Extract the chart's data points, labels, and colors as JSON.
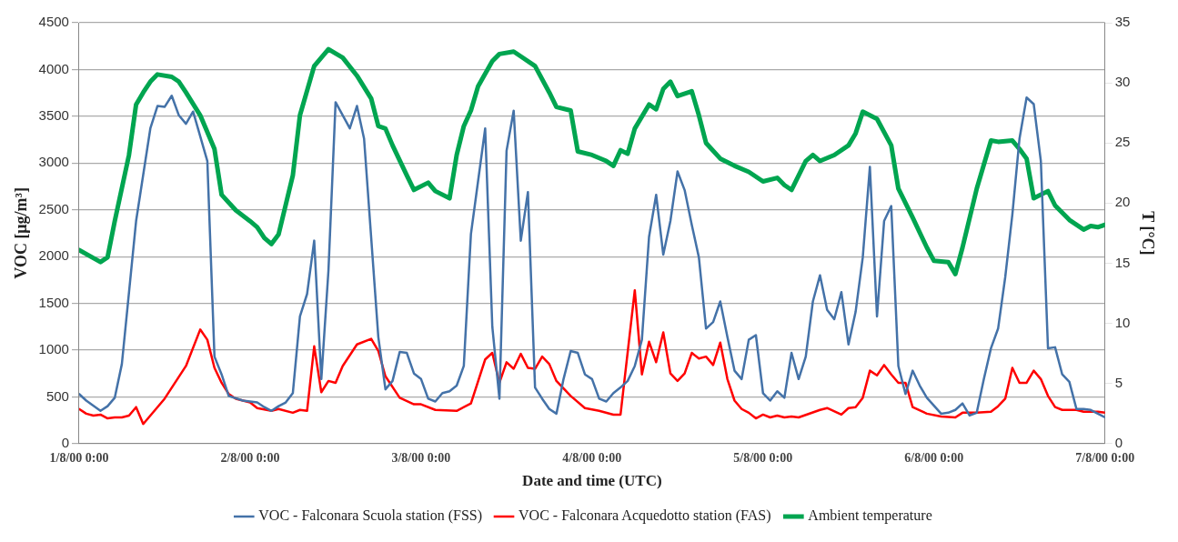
{
  "chart_data": {
    "type": "line",
    "xlabel": "Date and time (UTC)",
    "ylabel": "VOC [μg/m³]",
    "y2label": "T [°C]",
    "xlim": [
      "2000-08-01T00:00",
      "2000-08-07T00:00"
    ],
    "xticks": [
      {
        "value": "2000-08-01T00:00",
        "label": "1/8/00 0:00"
      },
      {
        "value": "2000-08-02T00:00",
        "label": "2/8/00 0:00"
      },
      {
        "value": "2000-08-03T00:00",
        "label": "3/8/00 0:00"
      },
      {
        "value": "2000-08-04T00:00",
        "label": "4/8/00 0:00"
      },
      {
        "value": "2000-08-05T00:00",
        "label": "5/8/00 0:00"
      },
      {
        "value": "2000-08-06T00:00",
        "label": "6/8/00 0:00"
      },
      {
        "value": "2000-08-07T00:00",
        "label": "7/8/00 0:00"
      }
    ],
    "ylim": [
      0,
      4500
    ],
    "yticks": [
      0,
      500,
      1000,
      1500,
      2000,
      2500,
      3000,
      3500,
      4000,
      4500
    ],
    "y2lim": [
      0,
      35
    ],
    "y2ticks": [
      0,
      5,
      10,
      15,
      20,
      25,
      30,
      35
    ],
    "grid": "y",
    "legend": "bottom",
    "marker": "none",
    "line_style": "solid",
    "series": [
      {
        "name": "VOC - Falconara Scuola station (FSS)",
        "color": "#4472a8",
        "x": [
          "2000-08-01T00:00",
          "2000-08-01T01:00",
          "2000-08-01T03:00",
          "2000-08-01T04:00",
          "2000-08-01T05:00",
          "2000-08-01T06:00",
          "2000-08-01T08:00",
          "2000-08-01T10:00",
          "2000-08-01T11:00",
          "2000-08-01T12:00",
          "2000-08-01T13:00",
          "2000-08-01T14:00",
          "2000-08-01T15:00",
          "2000-08-01T16:00",
          "2000-08-01T18:00",
          "2000-08-01T19:00",
          "2000-08-01T20:00",
          "2000-08-01T21:00",
          "2000-08-01T23:00",
          "2000-08-02T01:00",
          "2000-08-02T02:00",
          "2000-08-02T03:00",
          "2000-08-02T04:00",
          "2000-08-02T05:00",
          "2000-08-02T06:00",
          "2000-08-02T07:00",
          "2000-08-02T08:00",
          "2000-08-02T09:00",
          "2000-08-02T10:00",
          "2000-08-02T11:00",
          "2000-08-02T12:00",
          "2000-08-02T14:00",
          "2000-08-02T15:00",
          "2000-08-02T16:00",
          "2000-08-02T18:00",
          "2000-08-02T19:00",
          "2000-08-02T20:00",
          "2000-08-02T21:00",
          "2000-08-02T22:00",
          "2000-08-02T23:00",
          "2000-08-03T00:00",
          "2000-08-03T01:00",
          "2000-08-03T02:00",
          "2000-08-03T03:00",
          "2000-08-03T04:00",
          "2000-08-03T05:00",
          "2000-08-03T06:00",
          "2000-08-03T07:00",
          "2000-08-03T09:00",
          "2000-08-03T10:00",
          "2000-08-03T11:00",
          "2000-08-03T12:00",
          "2000-08-03T13:00",
          "2000-08-03T14:00",
          "2000-08-03T15:00",
          "2000-08-03T16:00",
          "2000-08-03T17:00",
          "2000-08-03T18:00",
          "2000-08-03T19:00",
          "2000-08-03T20:00",
          "2000-08-03T21:00",
          "2000-08-03T22:00",
          "2000-08-03T23:00",
          "2000-08-04T00:00",
          "2000-08-04T01:00",
          "2000-08-04T02:00",
          "2000-08-04T03:00",
          "2000-08-04T04:00",
          "2000-08-04T05:00",
          "2000-08-04T06:00",
          "2000-08-04T07:00",
          "2000-08-04T08:00",
          "2000-08-04T09:00",
          "2000-08-04T10:00",
          "2000-08-04T11:00",
          "2000-08-04T12:00",
          "2000-08-04T13:00",
          "2000-08-04T14:00",
          "2000-08-04T15:00",
          "2000-08-04T16:00",
          "2000-08-04T17:00",
          "2000-08-04T18:00",
          "2000-08-04T19:00",
          "2000-08-04T20:00",
          "2000-08-04T21:00",
          "2000-08-04T22:00",
          "2000-08-04T23:00",
          "2000-08-05T00:00",
          "2000-08-05T01:00",
          "2000-08-05T02:00",
          "2000-08-05T03:00",
          "2000-08-05T04:00",
          "2000-08-05T05:00",
          "2000-08-05T06:00",
          "2000-08-05T07:00",
          "2000-08-05T08:00",
          "2000-08-05T09:00",
          "2000-08-05T10:00",
          "2000-08-05T11:00",
          "2000-08-05T12:00",
          "2000-08-05T13:00",
          "2000-08-05T14:00",
          "2000-08-05T15:00",
          "2000-08-05T16:00",
          "2000-08-05T17:00",
          "2000-08-05T18:00",
          "2000-08-05T19:00",
          "2000-08-05T20:00",
          "2000-08-05T21:00",
          "2000-08-05T22:00",
          "2000-08-05T23:00",
          "2000-08-06T01:00",
          "2000-08-06T02:00",
          "2000-08-06T03:00",
          "2000-08-06T04:00",
          "2000-08-06T05:00",
          "2000-08-06T06:00",
          "2000-08-06T07:00",
          "2000-08-06T08:00",
          "2000-08-06T09:00",
          "2000-08-06T10:00",
          "2000-08-06T11:00",
          "2000-08-06T12:00",
          "2000-08-06T13:00",
          "2000-08-06T14:00",
          "2000-08-06T15:00",
          "2000-08-06T16:00",
          "2000-08-06T17:00",
          "2000-08-06T18:00",
          "2000-08-06T19:00",
          "2000-08-06T20:00",
          "2000-08-06T21:00",
          "2000-08-06T22:00",
          "2000-08-06T23:00",
          "2000-08-07T00:00"
        ],
        "values": [
          530,
          460,
          350,
          400,
          490,
          850,
          2380,
          3370,
          3610,
          3600,
          3720,
          3510,
          3420,
          3550,
          3020,
          930,
          740,
          510,
          460,
          440,
          390,
          350,
          400,
          440,
          540,
          1360,
          1600,
          2170,
          690,
          1850,
          3650,
          3370,
          3610,
          3260,
          1140,
          580,
          670,
          980,
          970,
          750,
          690,
          480,
          450,
          540,
          560,
          620,
          830,
          2240,
          3370,
          1250,
          480,
          3130,
          3560,
          2170,
          2690,
          600,
          480,
          370,
          320,
          690,
          990,
          970,
          740,
          690,
          480,
          450,
          540,
          600,
          670,
          830,
          1110,
          2210,
          2660,
          2020,
          2380,
          2910,
          2710,
          2340,
          1990,
          1230,
          1300,
          1520,
          1140,
          780,
          690,
          1110,
          1160,
          540,
          460,
          560,
          490,
          970,
          690,
          930,
          1520,
          1800,
          1430,
          1330,
          1620,
          1060,
          1410,
          1990,
          2960,
          1360,
          2380,
          2540,
          830,
          530,
          780,
          620,
          490,
          320,
          330,
          360,
          430,
          300,
          330,
          690,
          1020,
          1230,
          1780,
          2450,
          3260,
          3700,
          3630,
          3020,
          1020,
          1030,
          740,
          660,
          370,
          370,
          360,
          320,
          280
        ]
      },
      {
        "name": "VOC - Falconara Acquedotto station (FAS)",
        "color": "#ff0000",
        "x": [
          "2000-08-01T00:00",
          "2000-08-01T01:00",
          "2000-08-01T02:00",
          "2000-08-01T03:00",
          "2000-08-01T04:00",
          "2000-08-01T05:00",
          "2000-08-01T06:00",
          "2000-08-01T07:00",
          "2000-08-01T08:00",
          "2000-08-01T09:00",
          "2000-08-01T12:00",
          "2000-08-01T15:00",
          "2000-08-01T17:00",
          "2000-08-01T18:00",
          "2000-08-01T19:00",
          "2000-08-01T20:00",
          "2000-08-01T21:00",
          "2000-08-01T22:00",
          "2000-08-02T00:00",
          "2000-08-02T01:00",
          "2000-08-02T03:00",
          "2000-08-02T04:00",
          "2000-08-02T06:00",
          "2000-08-02T07:00",
          "2000-08-02T08:00",
          "2000-08-02T09:00",
          "2000-08-02T10:00",
          "2000-08-02T11:00",
          "2000-08-02T12:00",
          "2000-08-02T13:00",
          "2000-08-02T15:00",
          "2000-08-02T17:00",
          "2000-08-02T18:00",
          "2000-08-02T19:00",
          "2000-08-02T21:00",
          "2000-08-02T23:00",
          "2000-08-03T00:00",
          "2000-08-03T02:00",
          "2000-08-03T05:00",
          "2000-08-03T07:00",
          "2000-08-03T09:00",
          "2000-08-03T10:00",
          "2000-08-03T11:00",
          "2000-08-03T12:00",
          "2000-08-03T13:00",
          "2000-08-03T14:00",
          "2000-08-03T15:00",
          "2000-08-03T16:00",
          "2000-08-03T17:00",
          "2000-08-03T18:00",
          "2000-08-03T19:00",
          "2000-08-03T21:00",
          "2000-08-03T23:00",
          "2000-08-04T01:00",
          "2000-08-04T03:00",
          "2000-08-04T04:00",
          "2000-08-04T06:00",
          "2000-08-04T07:00",
          "2000-08-04T08:00",
          "2000-08-04T09:00",
          "2000-08-04T10:00",
          "2000-08-04T11:00",
          "2000-08-04T12:00",
          "2000-08-04T13:00",
          "2000-08-04T14:00",
          "2000-08-04T15:00",
          "2000-08-04T16:00",
          "2000-08-04T17:00",
          "2000-08-04T18:00",
          "2000-08-04T19:00",
          "2000-08-04T20:00",
          "2000-08-04T21:00",
          "2000-08-04T22:00",
          "2000-08-04T23:00",
          "2000-08-05T00:00",
          "2000-08-05T01:00",
          "2000-08-05T02:00",
          "2000-08-05T03:00",
          "2000-08-05T04:00",
          "2000-08-05T05:00",
          "2000-08-05T08:00",
          "2000-08-05T09:00",
          "2000-08-05T11:00",
          "2000-08-05T12:00",
          "2000-08-05T13:00",
          "2000-08-05T14:00",
          "2000-08-05T15:00",
          "2000-08-05T16:00",
          "2000-08-05T17:00",
          "2000-08-05T18:00",
          "2000-08-05T19:00",
          "2000-08-05T20:00",
          "2000-08-05T21:00",
          "2000-08-05T23:00",
          "2000-08-06T01:00",
          "2000-08-06T03:00",
          "2000-08-06T04:00",
          "2000-08-06T06:00",
          "2000-08-06T08:00",
          "2000-08-06T09:00",
          "2000-08-06T10:00",
          "2000-08-06T11:00",
          "2000-08-06T12:00",
          "2000-08-06T13:00",
          "2000-08-06T14:00",
          "2000-08-06T15:00",
          "2000-08-06T16:00",
          "2000-08-06T17:00",
          "2000-08-06T18:00",
          "2000-08-06T20:00",
          "2000-08-06T21:00",
          "2000-08-06T23:00",
          "2000-08-07T00:00"
        ],
        "values": [
          370,
          320,
          300,
          310,
          270,
          280,
          280,
          300,
          390,
          210,
          480,
          830,
          1220,
          1110,
          810,
          650,
          530,
          480,
          440,
          380,
          350,
          370,
          330,
          360,
          350,
          1040,
          550,
          670,
          650,
          830,
          1060,
          1120,
          990,
          720,
          490,
          420,
          420,
          360,
          350,
          430,
          900,
          970,
          650,
          870,
          800,
          960,
          810,
          800,
          930,
          850,
          670,
          510,
          380,
          350,
          310,
          310,
          1640,
          740,
          1090,
          870,
          1190,
          750,
          670,
          750,
          970,
          910,
          930,
          840,
          1080,
          690,
          460,
          370,
          330,
          270,
          310,
          280,
          300,
          280,
          290,
          280,
          360,
          380,
          310,
          380,
          390,
          490,
          780,
          730,
          840,
          740,
          650,
          650,
          390,
          320,
          290,
          280,
          330,
          330,
          340,
          400,
          480,
          810,
          650,
          650,
          780,
          690,
          510,
          390,
          360,
          360,
          340,
          340,
          330
        ]
      },
      {
        "name": "Ambient temperature",
        "color": "#00a550",
        "axis": "y2",
        "x": [
          "2000-08-01T00:00",
          "2000-08-01T03:00",
          "2000-08-01T04:00",
          "2000-08-01T05:00",
          "2000-08-01T07:00",
          "2000-08-01T08:00",
          "2000-08-01T09:00",
          "2000-08-01T10:00",
          "2000-08-01T11:00",
          "2000-08-01T13:00",
          "2000-08-01T14:00",
          "2000-08-01T15:00",
          "2000-08-01T17:00",
          "2000-08-01T19:00",
          "2000-08-01T20:00",
          "2000-08-01T22:00",
          "2000-08-02T00:00",
          "2000-08-02T01:00",
          "2000-08-02T02:00",
          "2000-08-02T03:00",
          "2000-08-02T04:00",
          "2000-08-02T06:00",
          "2000-08-02T07:00",
          "2000-08-02T09:00",
          "2000-08-02T11:00",
          "2000-08-02T13:00",
          "2000-08-02T15:00",
          "2000-08-02T17:00",
          "2000-08-02T18:00",
          "2000-08-02T19:00",
          "2000-08-02T20:00",
          "2000-08-02T22:00",
          "2000-08-02T23:00",
          "2000-08-03T01:00",
          "2000-08-03T02:00",
          "2000-08-03T04:00",
          "2000-08-03T05:00",
          "2000-08-03T06:00",
          "2000-08-03T07:00",
          "2000-08-03T08:00",
          "2000-08-03T10:00",
          "2000-08-03T11:00",
          "2000-08-03T13:00",
          "2000-08-03T14:00",
          "2000-08-03T16:00",
          "2000-08-03T18:00",
          "2000-08-03T19:00",
          "2000-08-03T21:00",
          "2000-08-03T22:00",
          "2000-08-04T00:00",
          "2000-08-04T02:00",
          "2000-08-04T03:00",
          "2000-08-04T04:00",
          "2000-08-04T05:00",
          "2000-08-04T06:00",
          "2000-08-04T08:00",
          "2000-08-04T09:00",
          "2000-08-04T10:00",
          "2000-08-04T11:00",
          "2000-08-04T12:00",
          "2000-08-04T14:00",
          "2000-08-04T15:00",
          "2000-08-04T16:00",
          "2000-08-04T18:00",
          "2000-08-04T20:00",
          "2000-08-04T22:00",
          "2000-08-05T00:00",
          "2000-08-05T02:00",
          "2000-08-05T03:00",
          "2000-08-05T04:00",
          "2000-08-05T06:00",
          "2000-08-05T07:00",
          "2000-08-05T08:00",
          "2000-08-05T10:00",
          "2000-08-05T12:00",
          "2000-08-05T13:00",
          "2000-08-05T14:00",
          "2000-08-05T16:00",
          "2000-08-05T18:00",
          "2000-08-05T19:00",
          "2000-08-05T21:00",
          "2000-08-05T23:00",
          "2000-08-06T00:00",
          "2000-08-06T02:00",
          "2000-08-06T03:00",
          "2000-08-06T04:00",
          "2000-08-06T06:00",
          "2000-08-06T08:00",
          "2000-08-06T09:00",
          "2000-08-06T11:00",
          "2000-08-06T12:00",
          "2000-08-06T13:00",
          "2000-08-06T14:00",
          "2000-08-06T16:00",
          "2000-08-06T17:00",
          "2000-08-06T19:00",
          "2000-08-06T21:00",
          "2000-08-06T22:00",
          "2000-08-06T23:00",
          "2000-08-07T00:00"
        ],
        "values": [
          16.1,
          15.1,
          15.5,
          18.5,
          24.0,
          28.2,
          29.2,
          30.1,
          30.7,
          30.5,
          30.1,
          29.2,
          27.3,
          24.5,
          20.7,
          19.4,
          18.5,
          18.0,
          17.1,
          16.6,
          17.4,
          22.3,
          27.3,
          31.4,
          32.8,
          32.1,
          30.6,
          28.7,
          26.4,
          26.2,
          24.8,
          22.3,
          21.1,
          21.7,
          21.0,
          20.4,
          24.0,
          26.4,
          27.7,
          29.7,
          31.8,
          32.4,
          32.6,
          32.2,
          31.4,
          29.2,
          28.0,
          27.7,
          24.3,
          24.0,
          23.5,
          23.1,
          24.4,
          24.1,
          26.2,
          28.2,
          27.8,
          29.5,
          30.1,
          28.9,
          29.3,
          27.3,
          25.0,
          23.7,
          23.1,
          22.6,
          21.8,
          22.1,
          21.5,
          21.1,
          23.5,
          24.0,
          23.5,
          24.0,
          24.8,
          25.8,
          27.6,
          27.0,
          24.8,
          21.2,
          18.8,
          16.3,
          15.2,
          15.1,
          14.1,
          16.3,
          21.2,
          25.2,
          25.1,
          25.2,
          24.5,
          23.7,
          20.4,
          21.0,
          19.8,
          18.6,
          17.8,
          18.1,
          18.0,
          18.2
        ]
      }
    ]
  }
}
